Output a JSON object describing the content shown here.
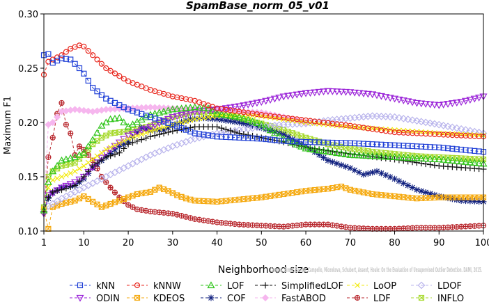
{
  "chart_data": {
    "type": "line",
    "title": "SpamBase_norm_05_v01",
    "xlabel": "Neighborhood size",
    "ylabel": "Maximum F1",
    "xlim": [
      1,
      100
    ],
    "ylim": [
      0.1,
      0.3
    ],
    "xticks": [
      1,
      10,
      20,
      30,
      40,
      50,
      60,
      70,
      80,
      90,
      100
    ],
    "yticks": [
      0.1,
      0.15,
      0.2,
      0.25,
      0.3
    ],
    "ytick_labels": [
      "0.10",
      "0.15",
      "0.20",
      "0.25",
      "0.30"
    ],
    "grid": false,
    "legend_position": "bottom",
    "watermark": "Campos, Zimek, Sander, Campello, Micenkova, Schubert, Assent, Houle: On the Evaluation of Unsupervised Outlier Detection. DAMI, 2015.",
    "series": [
      {
        "name": "kNN",
        "color": "#1f3fd6",
        "marker": "square",
        "dash": "4,3",
        "points": [
          [
            1,
            0.262
          ],
          [
            2,
            0.263
          ],
          [
            3,
            0.255
          ],
          [
            5,
            0.259
          ],
          [
            7,
            0.258
          ],
          [
            9,
            0.25
          ],
          [
            10,
            0.245
          ],
          [
            12,
            0.232
          ],
          [
            15,
            0.222
          ],
          [
            20,
            0.212
          ],
          [
            25,
            0.205
          ],
          [
            30,
            0.198
          ],
          [
            35,
            0.19
          ],
          [
            40,
            0.187
          ],
          [
            45,
            0.186
          ],
          [
            50,
            0.185
          ],
          [
            55,
            0.183
          ],
          [
            60,
            0.182
          ],
          [
            70,
            0.181
          ],
          [
            80,
            0.179
          ],
          [
            90,
            0.177
          ],
          [
            100,
            0.173
          ]
        ]
      },
      {
        "name": "kNNW",
        "color": "#e8261c",
        "marker": "circle",
        "dash": "4,3",
        "points": [
          [
            1,
            0.244
          ],
          [
            2,
            0.256
          ],
          [
            3,
            0.258
          ],
          [
            5,
            0.262
          ],
          [
            7,
            0.268
          ],
          [
            9,
            0.271
          ],
          [
            10,
            0.27
          ],
          [
            12,
            0.262
          ],
          [
            15,
            0.25
          ],
          [
            20,
            0.238
          ],
          [
            25,
            0.23
          ],
          [
            30,
            0.224
          ],
          [
            35,
            0.22
          ],
          [
            40,
            0.213
          ],
          [
            45,
            0.21
          ],
          [
            50,
            0.207
          ],
          [
            60,
            0.202
          ],
          [
            70,
            0.197
          ],
          [
            80,
            0.191
          ],
          [
            90,
            0.189
          ],
          [
            100,
            0.187
          ]
        ]
      },
      {
        "name": "LOF",
        "color": "#2fc41a",
        "marker": "triangle-up",
        "dash": "4,3",
        "points": [
          [
            1,
            0.119
          ],
          [
            2,
            0.145
          ],
          [
            3,
            0.155
          ],
          [
            5,
            0.165
          ],
          [
            8,
            0.168
          ],
          [
            10,
            0.172
          ],
          [
            12,
            0.184
          ],
          [
            14,
            0.197
          ],
          [
            16,
            0.203
          ],
          [
            18,
            0.204
          ],
          [
            20,
            0.196
          ],
          [
            25,
            0.207
          ],
          [
            30,
            0.212
          ],
          [
            35,
            0.214
          ],
          [
            38,
            0.213
          ],
          [
            40,
            0.208
          ],
          [
            45,
            0.205
          ],
          [
            50,
            0.198
          ],
          [
            55,
            0.185
          ],
          [
            60,
            0.176
          ],
          [
            70,
            0.17
          ],
          [
            80,
            0.168
          ],
          [
            90,
            0.166
          ],
          [
            100,
            0.162
          ]
        ]
      },
      {
        "name": "SimplifiedLOF",
        "color": "#111111",
        "marker": "plus",
        "dash": "4,3",
        "points": [
          [
            1,
            0.118
          ],
          [
            2,
            0.131
          ],
          [
            3,
            0.136
          ],
          [
            5,
            0.138
          ],
          [
            8,
            0.142
          ],
          [
            10,
            0.15
          ],
          [
            12,
            0.16
          ],
          [
            15,
            0.168
          ],
          [
            18,
            0.172
          ],
          [
            20,
            0.18
          ],
          [
            25,
            0.187
          ],
          [
            30,
            0.192
          ],
          [
            35,
            0.196
          ],
          [
            40,
            0.196
          ],
          [
            45,
            0.19
          ],
          [
            50,
            0.186
          ],
          [
            55,
            0.182
          ],
          [
            60,
            0.177
          ],
          [
            70,
            0.171
          ],
          [
            80,
            0.166
          ],
          [
            90,
            0.16
          ],
          [
            100,
            0.157
          ]
        ]
      },
      {
        "name": "LoOP",
        "color": "#f2ea0c",
        "marker": "x",
        "dash": "4,3",
        "points": [
          [
            1,
            0.12
          ],
          [
            2,
            0.14
          ],
          [
            3,
            0.147
          ],
          [
            5,
            0.15
          ],
          [
            8,
            0.155
          ],
          [
            10,
            0.16
          ],
          [
            15,
            0.175
          ],
          [
            20,
            0.185
          ],
          [
            25,
            0.192
          ],
          [
            30,
            0.198
          ],
          [
            35,
            0.203
          ],
          [
            40,
            0.206
          ],
          [
            45,
            0.207
          ],
          [
            50,
            0.206
          ],
          [
            55,
            0.203
          ],
          [
            60,
            0.2
          ],
          [
            70,
            0.196
          ],
          [
            80,
            0.193
          ],
          [
            90,
            0.19
          ],
          [
            100,
            0.188
          ]
        ]
      },
      {
        "name": "LDOF",
        "color": "#b9b4ec",
        "marker": "diamond",
        "dash": "4,3",
        "points": [
          [
            1,
            0.118
          ],
          [
            2,
            0.123
          ],
          [
            3,
            0.125
          ],
          [
            5,
            0.13
          ],
          [
            8,
            0.136
          ],
          [
            10,
            0.14
          ],
          [
            15,
            0.15
          ],
          [
            20,
            0.16
          ],
          [
            25,
            0.17
          ],
          [
            30,
            0.178
          ],
          [
            35,
            0.185
          ],
          [
            40,
            0.19
          ],
          [
            45,
            0.193
          ],
          [
            50,
            0.196
          ],
          [
            55,
            0.198
          ],
          [
            60,
            0.199
          ],
          [
            65,
            0.202
          ],
          [
            70,
            0.204
          ],
          [
            75,
            0.206
          ],
          [
            80,
            0.205
          ],
          [
            90,
            0.198
          ],
          [
            100,
            0.19
          ]
        ]
      },
      {
        "name": "ODIN",
        "color": "#9a22d8",
        "marker": "triangle-down",
        "dash": "4,3",
        "points": [
          [
            1,
            0.116
          ],
          [
            2,
            0.133
          ],
          [
            3,
            0.135
          ],
          [
            5,
            0.14
          ],
          [
            8,
            0.145
          ],
          [
            10,
            0.15
          ],
          [
            15,
            0.172
          ],
          [
            20,
            0.188
          ],
          [
            25,
            0.196
          ],
          [
            30,
            0.205
          ],
          [
            35,
            0.21
          ],
          [
            40,
            0.212
          ],
          [
            45,
            0.215
          ],
          [
            50,
            0.219
          ],
          [
            55,
            0.224
          ],
          [
            60,
            0.227
          ],
          [
            65,
            0.229
          ],
          [
            70,
            0.228
          ],
          [
            75,
            0.226
          ],
          [
            80,
            0.222
          ],
          [
            85,
            0.218
          ],
          [
            90,
            0.216
          ],
          [
            95,
            0.219
          ],
          [
            100,
            0.224
          ]
        ]
      },
      {
        "name": "KDEOS",
        "color": "#f5a90f",
        "marker": "square-x",
        "dash": "4,3",
        "points": [
          [
            1,
            0.12
          ],
          [
            2,
            0.102
          ],
          [
            3,
            0.122
          ],
          [
            5,
            0.125
          ],
          [
            8,
            0.128
          ],
          [
            10,
            0.132
          ],
          [
            12,
            0.127
          ],
          [
            14,
            0.122
          ],
          [
            16,
            0.125
          ],
          [
            18,
            0.128
          ],
          [
            20,
            0.131
          ],
          [
            22,
            0.134
          ],
          [
            25,
            0.136
          ],
          [
            27,
            0.14
          ],
          [
            29,
            0.137
          ],
          [
            31,
            0.133
          ],
          [
            33,
            0.13
          ],
          [
            35,
            0.128
          ],
          [
            40,
            0.127
          ],
          [
            45,
            0.129
          ],
          [
            50,
            0.131
          ],
          [
            55,
            0.134
          ],
          [
            60,
            0.137
          ],
          [
            65,
            0.139
          ],
          [
            68,
            0.141
          ],
          [
            70,
            0.138
          ],
          [
            75,
            0.134
          ],
          [
            80,
            0.132
          ],
          [
            85,
            0.13
          ],
          [
            90,
            0.131
          ],
          [
            95,
            0.131
          ],
          [
            100,
            0.131
          ]
        ]
      },
      {
        "name": "COF",
        "color": "#10207f",
        "marker": "asterisk",
        "dash": "4,3",
        "points": [
          [
            1,
            0.12
          ],
          [
            2,
            0.13
          ],
          [
            3,
            0.135
          ],
          [
            5,
            0.14
          ],
          [
            8,
            0.142
          ],
          [
            10,
            0.148
          ],
          [
            12,
            0.158
          ],
          [
            14,
            0.165
          ],
          [
            18,
            0.178
          ],
          [
            20,
            0.182
          ],
          [
            23,
            0.195
          ],
          [
            25,
            0.193
          ],
          [
            28,
            0.193
          ],
          [
            31,
            0.199
          ],
          [
            34,
            0.203
          ],
          [
            37,
            0.204
          ],
          [
            40,
            0.203
          ],
          [
            45,
            0.2
          ],
          [
            50,
            0.195
          ],
          [
            55,
            0.189
          ],
          [
            60,
            0.178
          ],
          [
            65,
            0.165
          ],
          [
            70,
            0.158
          ],
          [
            73,
            0.152
          ],
          [
            76,
            0.155
          ],
          [
            80,
            0.148
          ],
          [
            85,
            0.138
          ],
          [
            90,
            0.132
          ],
          [
            95,
            0.128
          ],
          [
            100,
            0.127
          ]
        ]
      },
      {
        "name": "FastABOD",
        "color": "#f6b6ee",
        "marker": "diamond-filled",
        "dash": "4,3",
        "points": [
          [
            1,
            0.118
          ],
          [
            2,
            0.198
          ],
          [
            3,
            0.2
          ],
          [
            5,
            0.21
          ],
          [
            8,
            0.212
          ],
          [
            10,
            0.211
          ],
          [
            12,
            0.21
          ],
          [
            15,
            0.212
          ],
          [
            20,
            0.213
          ],
          [
            25,
            0.214
          ],
          [
            30,
            0.213
          ],
          [
            35,
            0.212
          ],
          [
            40,
            0.212
          ],
          [
            45,
            0.21
          ],
          [
            50,
            0.209
          ],
          [
            55,
            0.205
          ],
          [
            60,
            0.2
          ]
        ]
      },
      {
        "name": "LDF",
        "color": "#b8262c",
        "marker": "circle-plus",
        "dash": "4,3",
        "points": [
          [
            1,
            0.117
          ],
          [
            2,
            0.168
          ],
          [
            3,
            0.186
          ],
          [
            4,
            0.208
          ],
          [
            5,
            0.218
          ],
          [
            6,
            0.198
          ],
          [
            7,
            0.19
          ],
          [
            8,
            0.17
          ],
          [
            9,
            0.178
          ],
          [
            10,
            0.175
          ],
          [
            12,
            0.165
          ],
          [
            14,
            0.15
          ],
          [
            16,
            0.14
          ],
          [
            18,
            0.131
          ],
          [
            20,
            0.124
          ],
          [
            22,
            0.12
          ],
          [
            25,
            0.118
          ],
          [
            30,
            0.116
          ],
          [
            35,
            0.111
          ],
          [
            40,
            0.108
          ],
          [
            45,
            0.106
          ],
          [
            50,
            0.105
          ],
          [
            55,
            0.104
          ],
          [
            60,
            0.106
          ],
          [
            65,
            0.106
          ],
          [
            70,
            0.103
          ],
          [
            75,
            0.102
          ],
          [
            80,
            0.102
          ],
          [
            85,
            0.103
          ],
          [
            90,
            0.103
          ],
          [
            95,
            0.104
          ],
          [
            100,
            0.105
          ]
        ]
      },
      {
        "name": "INFLO",
        "color": "#a8da30",
        "marker": "square-x",
        "dash": "4,3",
        "points": [
          [
            1,
            0.122
          ],
          [
            2,
            0.15
          ],
          [
            3,
            0.155
          ],
          [
            5,
            0.16
          ],
          [
            8,
            0.163
          ],
          [
            10,
            0.17
          ],
          [
            12,
            0.18
          ],
          [
            14,
            0.186
          ],
          [
            16,
            0.19
          ],
          [
            20,
            0.192
          ],
          [
            25,
            0.197
          ],
          [
            30,
            0.205
          ],
          [
            35,
            0.21
          ],
          [
            40,
            0.208
          ],
          [
            45,
            0.204
          ],
          [
            50,
            0.199
          ],
          [
            55,
            0.193
          ],
          [
            60,
            0.186
          ],
          [
            65,
            0.18
          ],
          [
            70,
            0.176
          ],
          [
            75,
            0.173
          ],
          [
            80,
            0.171
          ],
          [
            85,
            0.169
          ],
          [
            90,
            0.168
          ],
          [
            95,
            0.167
          ],
          [
            100,
            0.166
          ]
        ]
      }
    ]
  }
}
